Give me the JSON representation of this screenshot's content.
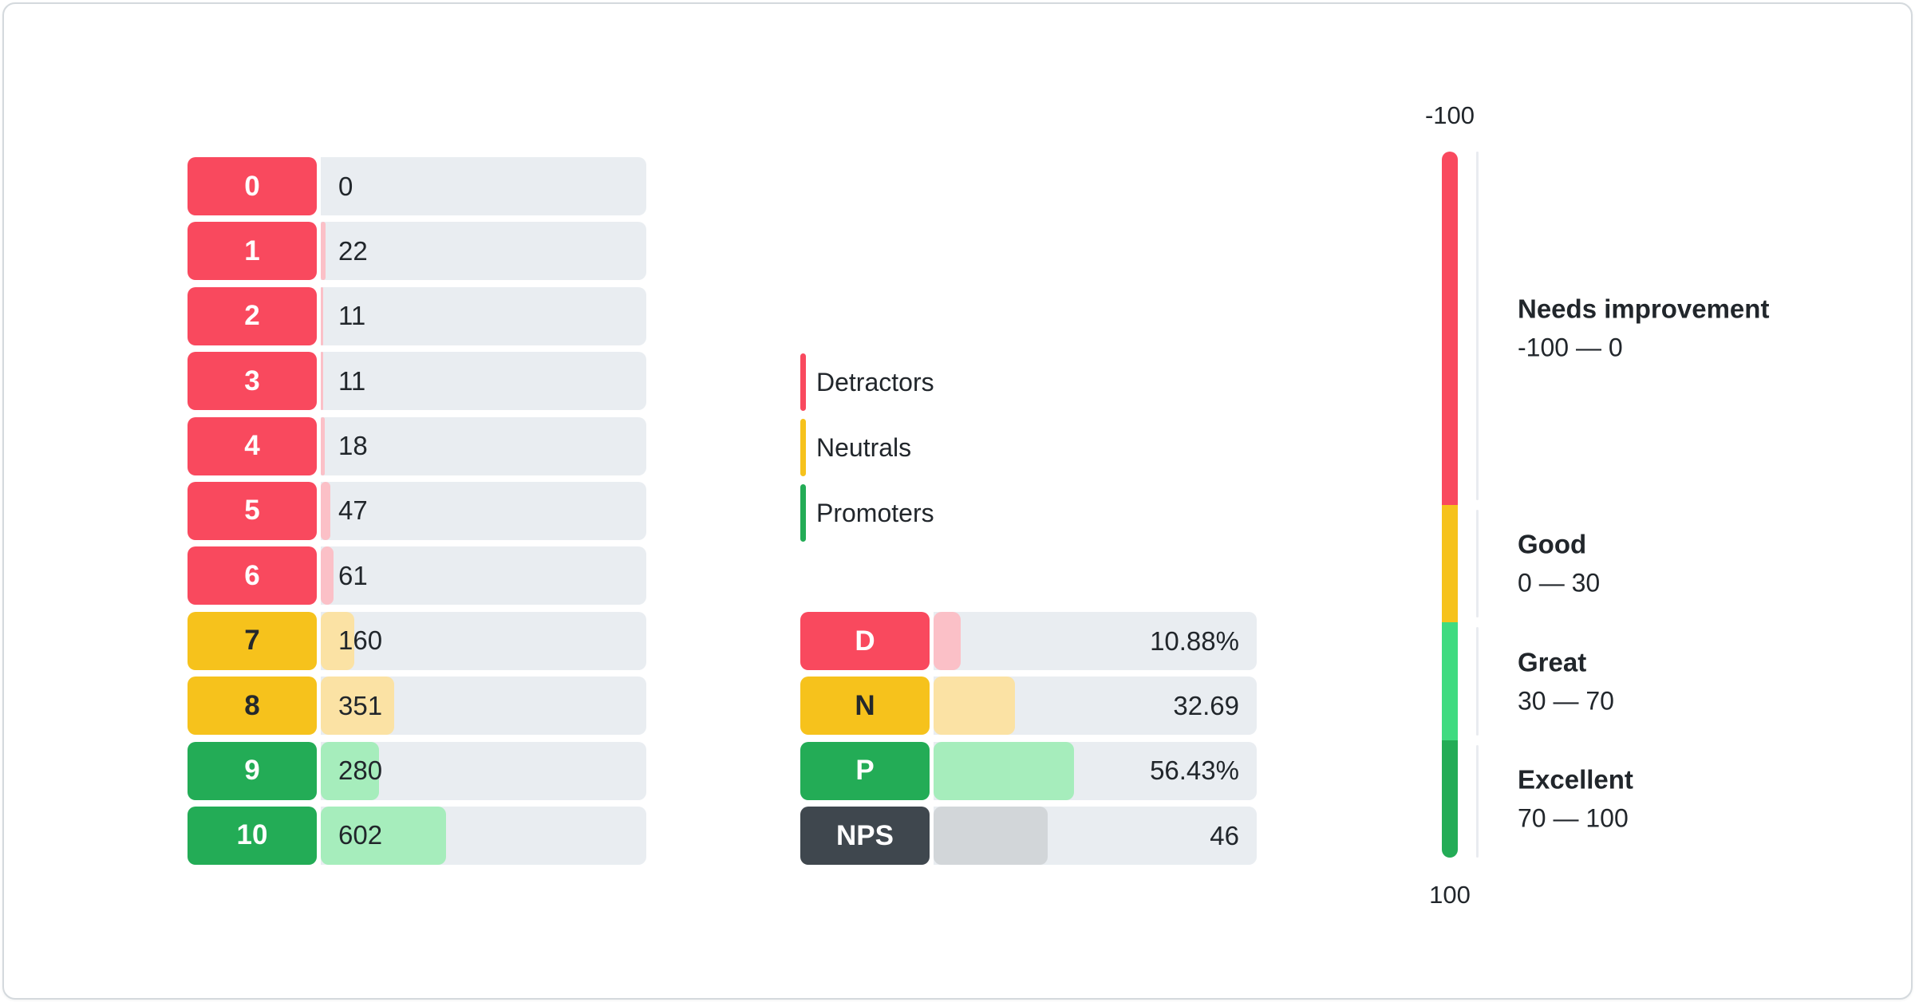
{
  "chart_data": {
    "type": "bar",
    "distribution": {
      "categories": [
        "0",
        "1",
        "2",
        "3",
        "4",
        "5",
        "6",
        "7",
        "8",
        "9",
        "10"
      ],
      "values": [
        0,
        22,
        11,
        11,
        18,
        47,
        61,
        160,
        351,
        280,
        602
      ],
      "groups": [
        "detractor",
        "detractor",
        "detractor",
        "detractor",
        "detractor",
        "detractor",
        "detractor",
        "neutral",
        "neutral",
        "promoter",
        "promoter"
      ]
    },
    "legend": [
      {
        "label": "Detractors",
        "group": "detractor"
      },
      {
        "label": "Neutrals",
        "group": "neutral"
      },
      {
        "label": "Promoters",
        "group": "promoter"
      }
    ],
    "summary": {
      "bar_scale_max": 130,
      "rows": [
        {
          "label": "D",
          "value": 10.88,
          "display": "10.88%",
          "group": "detractor"
        },
        {
          "label": "N",
          "value": 32.69,
          "display": "32.69",
          "group": "neutral"
        },
        {
          "label": "P",
          "value": 56.43,
          "display": "56.43%",
          "group": "promoter"
        },
        {
          "label": "NPS",
          "value": 46,
          "display": "46",
          "group": "nps"
        }
      ]
    },
    "gauge": {
      "axis_min": -100,
      "axis_max": 100,
      "top_label": "-100",
      "bottom_label": "100",
      "zones": [
        {
          "title": "Needs improvement",
          "range": "-100 — 0",
          "from": -100,
          "to": 0,
          "color": "#F9495E",
          "height_pct": 50
        },
        {
          "title": "Good",
          "range": "0 — 30",
          "from": 0,
          "to": 30,
          "color": "#F6C21C",
          "height_pct": 16.67
        },
        {
          "title": "Great",
          "range": "30 — 70",
          "from": 30,
          "to": 70,
          "color": "#3FDB80",
          "height_pct": 16.67
        },
        {
          "title": "Excellent",
          "range": "70 — 100",
          "from": 70,
          "to": 100,
          "color": "#23AC56",
          "height_pct": 16.66
        }
      ]
    }
  },
  "colors": {
    "detractor": "#F9495E",
    "detractor_light": "#FBC0C7",
    "neutral": "#F6C21C",
    "neutral_light": "#FBE2A4",
    "promoter": "#23AC56",
    "promoter_light": "#A6EDBC",
    "promoter_mid": "#3FDB80",
    "nps": "#3F474E",
    "nps_light": "#D2D6D9",
    "track": "#E9EDF1"
  }
}
